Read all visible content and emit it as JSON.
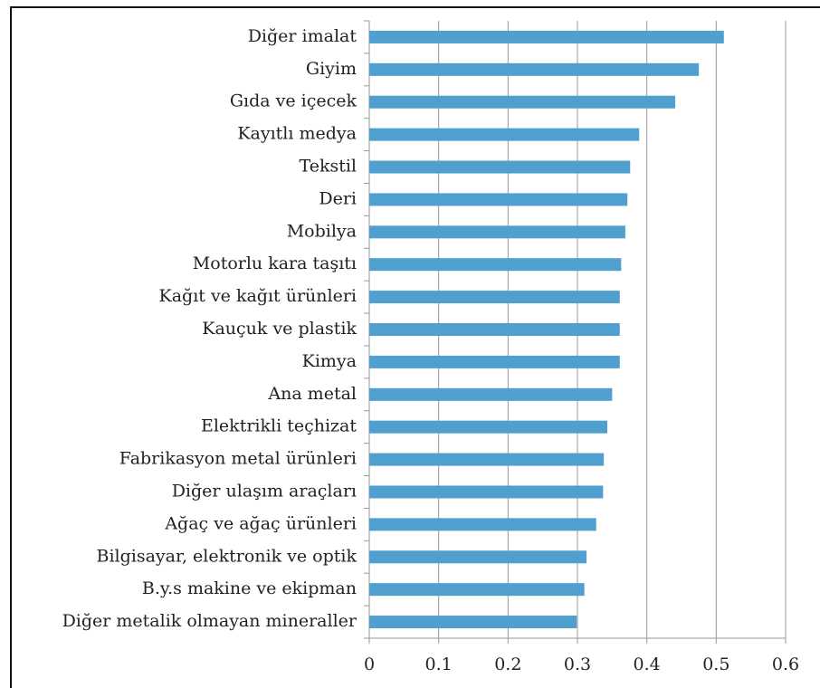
{
  "chart_data": {
    "type": "barh",
    "categories": [
      "Diğer imalat",
      "Giyim",
      "Gıda ve içecek",
      "Kayıtlı medya",
      "Tekstil",
      "Deri",
      "Mobilya",
      "Motorlu kara taşıtı",
      "Kağıt ve kağıt ürünleri",
      "Kauçuk ve plastik",
      "Kimya",
      "Ana metal",
      "Elektrikli teçhizat",
      "Fabrikasyon metal ürünleri",
      "Diğer ulaşım araçları",
      "Ağaç ve ağaç ürünleri",
      "Bilgisayar, elektronik ve optik",
      "B.y.s makine ve ekipman",
      "Diğer metalik olmayan mineraller"
    ],
    "values": [
      0.511,
      0.475,
      0.441,
      0.389,
      0.376,
      0.372,
      0.369,
      0.363,
      0.361,
      0.361,
      0.361,
      0.35,
      0.343,
      0.338,
      0.337,
      0.327,
      0.313,
      0.31,
      0.299
    ],
    "color": "#4f9fcf",
    "xlim": [
      0,
      0.6
    ],
    "xticks": [
      0,
      0.1,
      0.2,
      0.3,
      0.4,
      0.5,
      0.6
    ],
    "grid": true
  }
}
